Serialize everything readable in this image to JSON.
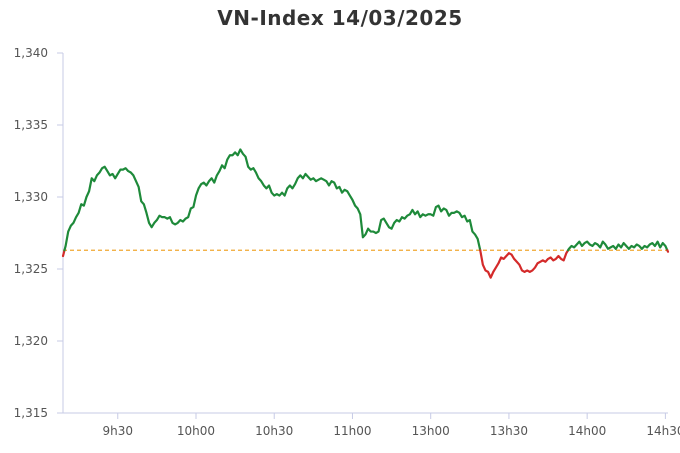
{
  "chart_data": {
    "type": "line",
    "title": "VN-Index 14/03/2025",
    "xlabel": "",
    "ylabel": "",
    "ylim": [
      1315,
      1340
    ],
    "yticks": [
      1315,
      1320,
      1325,
      1330,
      1335,
      1340
    ],
    "ytick_labels": [
      "1,315",
      "1,320",
      "1,325",
      "1,330",
      "1,335",
      "1,340"
    ],
    "xticks": [
      {
        "label": "9h30",
        "t": 30
      },
      {
        "label": "10h00",
        "t": 60
      },
      {
        "label": "10h30",
        "t": 90
      },
      {
        "label": "11h00",
        "t": 120
      },
      {
        "label": "13h00",
        "t": 150
      },
      {
        "label": "13h30",
        "t": 180
      },
      {
        "label": "14h00",
        "t": 210
      },
      {
        "label": "14h30",
        "t": 240
      }
    ],
    "x_range": [
      9,
      241
    ],
    "reference": {
      "value": 1326.3,
      "color": "#f0a830",
      "style": "dashed"
    },
    "colors": {
      "above": "#1e8a3a",
      "below": "#d42a2a",
      "axis": "#c7cbe6"
    },
    "grid": false,
    "legend": "none",
    "series": [
      {
        "points": [
          [
            9,
            1325.9
          ],
          [
            10,
            1326.6
          ],
          [
            11,
            1327.6
          ],
          [
            12,
            1328.0
          ],
          [
            13,
            1328.2
          ],
          [
            14,
            1328.6
          ],
          [
            15,
            1328.9
          ],
          [
            16,
            1329.5
          ],
          [
            17,
            1329.4
          ],
          [
            18,
            1330.0
          ],
          [
            19,
            1330.4
          ],
          [
            20,
            1331.3
          ],
          [
            21,
            1331.1
          ],
          [
            22,
            1331.5
          ],
          [
            23,
            1331.7
          ],
          [
            24,
            1332.0
          ],
          [
            25,
            1332.1
          ],
          [
            26,
            1331.8
          ],
          [
            27,
            1331.5
          ],
          [
            28,
            1331.6
          ],
          [
            29,
            1331.3
          ],
          [
            30,
            1331.6
          ],
          [
            31,
            1331.9
          ],
          [
            32,
            1331.9
          ],
          [
            33,
            1332.0
          ],
          [
            34,
            1331.8
          ],
          [
            35,
            1331.7
          ],
          [
            36,
            1331.5
          ],
          [
            37,
            1331.1
          ],
          [
            38,
            1330.7
          ],
          [
            39,
            1329.7
          ],
          [
            40,
            1329.5
          ],
          [
            41,
            1328.9
          ],
          [
            42,
            1328.2
          ],
          [
            43,
            1327.9
          ],
          [
            44,
            1328.2
          ],
          [
            45,
            1328.4
          ],
          [
            46,
            1328.7
          ],
          [
            47,
            1328.6
          ],
          [
            48,
            1328.6
          ],
          [
            49,
            1328.5
          ],
          [
            50,
            1328.6
          ],
          [
            51,
            1328.2
          ],
          [
            52,
            1328.1
          ],
          [
            53,
            1328.2
          ],
          [
            54,
            1328.4
          ],
          [
            55,
            1328.3
          ],
          [
            56,
            1328.5
          ],
          [
            57,
            1328.6
          ],
          [
            58,
            1329.2
          ],
          [
            59,
            1329.3
          ],
          [
            60,
            1330.1
          ],
          [
            61,
            1330.6
          ],
          [
            62,
            1330.9
          ],
          [
            63,
            1331.0
          ],
          [
            64,
            1330.8
          ],
          [
            65,
            1331.1
          ],
          [
            66,
            1331.3
          ],
          [
            67,
            1331.0
          ],
          [
            68,
            1331.5
          ],
          [
            69,
            1331.8
          ],
          [
            70,
            1332.2
          ],
          [
            71,
            1332.0
          ],
          [
            72,
            1332.6
          ],
          [
            73,
            1332.9
          ],
          [
            74,
            1332.9
          ],
          [
            75,
            1333.1
          ],
          [
            76,
            1332.9
          ],
          [
            77,
            1333.3
          ],
          [
            78,
            1333.0
          ],
          [
            79,
            1332.8
          ],
          [
            80,
            1332.1
          ],
          [
            81,
            1331.9
          ],
          [
            82,
            1332.0
          ],
          [
            83,
            1331.7
          ],
          [
            84,
            1331.3
          ],
          [
            85,
            1331.1
          ],
          [
            86,
            1330.8
          ],
          [
            87,
            1330.6
          ],
          [
            88,
            1330.8
          ],
          [
            89,
            1330.3
          ],
          [
            90,
            1330.1
          ],
          [
            91,
            1330.2
          ],
          [
            92,
            1330.1
          ],
          [
            93,
            1330.3
          ],
          [
            94,
            1330.1
          ],
          [
            95,
            1330.6
          ],
          [
            96,
            1330.8
          ],
          [
            97,
            1330.6
          ],
          [
            98,
            1330.9
          ],
          [
            99,
            1331.3
          ],
          [
            100,
            1331.5
          ],
          [
            101,
            1331.3
          ],
          [
            102,
            1331.6
          ],
          [
            103,
            1331.4
          ],
          [
            104,
            1331.2
          ],
          [
            105,
            1331.3
          ],
          [
            106,
            1331.1
          ],
          [
            107,
            1331.2
          ],
          [
            108,
            1331.3
          ],
          [
            109,
            1331.2
          ],
          [
            110,
            1331.1
          ],
          [
            111,
            1330.8
          ],
          [
            112,
            1331.1
          ],
          [
            113,
            1331.0
          ],
          [
            114,
            1330.6
          ],
          [
            115,
            1330.7
          ],
          [
            116,
            1330.3
          ],
          [
            117,
            1330.5
          ],
          [
            118,
            1330.4
          ],
          [
            119,
            1330.1
          ],
          [
            120,
            1329.8
          ],
          [
            121,
            1329.4
          ],
          [
            122,
            1329.2
          ],
          [
            123,
            1328.8
          ],
          [
            124,
            1327.2
          ],
          [
            125,
            1327.4
          ],
          [
            126,
            1327.8
          ],
          [
            127,
            1327.6
          ],
          [
            128,
            1327.6
          ],
          [
            129,
            1327.5
          ],
          [
            130,
            1327.6
          ],
          [
            131,
            1328.4
          ],
          [
            132,
            1328.5
          ],
          [
            133,
            1328.2
          ],
          [
            134,
            1327.9
          ],
          [
            135,
            1327.8
          ],
          [
            136,
            1328.2
          ],
          [
            137,
            1328.4
          ],
          [
            138,
            1328.3
          ],
          [
            139,
            1328.6
          ],
          [
            140,
            1328.5
          ],
          [
            141,
            1328.7
          ],
          [
            142,
            1328.8
          ],
          [
            143,
            1329.1
          ],
          [
            144,
            1328.8
          ],
          [
            145,
            1329.0
          ],
          [
            146,
            1328.6
          ],
          [
            147,
            1328.8
          ],
          [
            148,
            1328.7
          ],
          [
            149,
            1328.8
          ],
          [
            150,
            1328.8
          ],
          [
            151,
            1328.7
          ],
          [
            152,
            1329.3
          ],
          [
            153,
            1329.4
          ],
          [
            154,
            1329.0
          ],
          [
            155,
            1329.2
          ],
          [
            156,
            1329.1
          ],
          [
            157,
            1328.7
          ],
          [
            158,
            1328.9
          ],
          [
            159,
            1328.9
          ],
          [
            160,
            1329.0
          ],
          [
            161,
            1328.9
          ],
          [
            162,
            1328.6
          ],
          [
            163,
            1328.7
          ],
          [
            164,
            1328.3
          ],
          [
            165,
            1328.4
          ],
          [
            166,
            1327.6
          ],
          [
            167,
            1327.4
          ],
          [
            168,
            1327.1
          ],
          [
            169,
            1326.3
          ],
          [
            170,
            1325.3
          ],
          [
            171,
            1324.9
          ],
          [
            172,
            1324.8
          ],
          [
            173,
            1324.4
          ],
          [
            174,
            1324.8
          ],
          [
            175,
            1325.1
          ],
          [
            176,
            1325.4
          ],
          [
            177,
            1325.8
          ],
          [
            178,
            1325.7
          ],
          [
            179,
            1325.9
          ],
          [
            180,
            1326.1
          ],
          [
            181,
            1326.0
          ],
          [
            182,
            1325.7
          ],
          [
            183,
            1325.5
          ],
          [
            184,
            1325.3
          ],
          [
            185,
            1324.9
          ],
          [
            186,
            1324.8
          ],
          [
            187,
            1324.9
          ],
          [
            188,
            1324.8
          ],
          [
            189,
            1324.9
          ],
          [
            190,
            1325.1
          ],
          [
            191,
            1325.4
          ],
          [
            192,
            1325.5
          ],
          [
            193,
            1325.6
          ],
          [
            194,
            1325.5
          ],
          [
            195,
            1325.7
          ],
          [
            196,
            1325.8
          ],
          [
            197,
            1325.6
          ],
          [
            198,
            1325.7
          ],
          [
            199,
            1325.9
          ],
          [
            200,
            1325.7
          ],
          [
            201,
            1325.6
          ],
          [
            202,
            1326.1
          ],
          [
            203,
            1326.4
          ],
          [
            204,
            1326.6
          ],
          [
            205,
            1326.5
          ],
          [
            206,
            1326.7
          ],
          [
            207,
            1326.9
          ],
          [
            208,
            1326.6
          ],
          [
            209,
            1326.8
          ],
          [
            210,
            1326.9
          ],
          [
            211,
            1326.7
          ],
          [
            212,
            1326.6
          ],
          [
            213,
            1326.8
          ],
          [
            214,
            1326.7
          ],
          [
            215,
            1326.5
          ],
          [
            216,
            1326.9
          ],
          [
            217,
            1326.7
          ],
          [
            218,
            1326.4
          ],
          [
            219,
            1326.5
          ],
          [
            220,
            1326.6
          ],
          [
            221,
            1326.4
          ],
          [
            222,
            1326.7
          ],
          [
            223,
            1326.5
          ],
          [
            224,
            1326.8
          ],
          [
            225,
            1326.6
          ],
          [
            226,
            1326.4
          ],
          [
            227,
            1326.6
          ],
          [
            228,
            1326.5
          ],
          [
            229,
            1326.7
          ],
          [
            230,
            1326.6
          ],
          [
            231,
            1326.4
          ],
          [
            232,
            1326.6
          ],
          [
            233,
            1326.5
          ],
          [
            234,
            1326.7
          ],
          [
            235,
            1326.8
          ],
          [
            236,
            1326.6
          ],
          [
            237,
            1326.9
          ],
          [
            238,
            1326.5
          ],
          [
            239,
            1326.8
          ],
          [
            240,
            1326.6
          ],
          [
            241,
            1326.2
          ]
        ]
      }
    ]
  }
}
